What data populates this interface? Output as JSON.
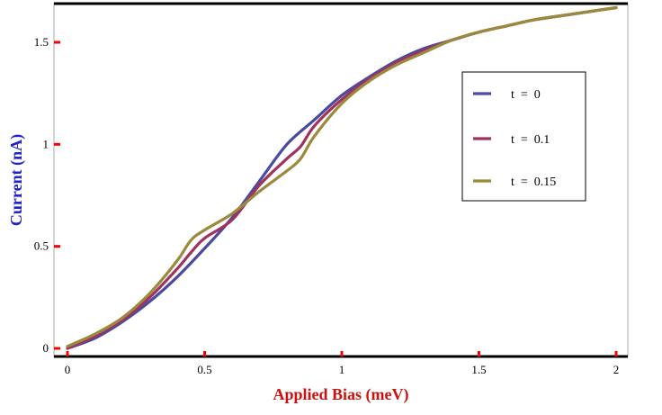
{
  "chart_data": {
    "type": "line",
    "xlabel": "Applied Bias  (meV)",
    "ylabel": "Current  (nA)",
    "xlim": [
      -0.05,
      2.05
    ],
    "ylim": [
      -0.05,
      1.7
    ],
    "x_ticks": [
      {
        "value": 0,
        "label": "0"
      },
      {
        "value": 0.5,
        "label": "0.5"
      },
      {
        "value": 1,
        "label": "1"
      },
      {
        "value": 1.5,
        "label": "1.5"
      },
      {
        "value": 2,
        "label": "2"
      }
    ],
    "y_ticks": [
      {
        "value": 0,
        "label": "0"
      },
      {
        "value": 0.5,
        "label": "0.5"
      },
      {
        "value": 1,
        "label": "1"
      },
      {
        "value": 1.5,
        "label": "1.5"
      }
    ],
    "legend_position": "top-right",
    "series": [
      {
        "name": "t  =  0",
        "color": "#4a4aa0",
        "x": [
          0,
          0.1,
          0.2,
          0.3,
          0.4,
          0.5,
          0.6,
          0.7,
          0.8,
          0.9,
          1.0,
          1.1,
          1.2,
          1.3,
          1.4,
          1.5,
          1.6,
          1.7,
          1.8,
          1.9,
          2.0
        ],
        "y": [
          0.0,
          0.05,
          0.13,
          0.23,
          0.35,
          0.49,
          0.64,
          0.82,
          1.0,
          1.12,
          1.24,
          1.33,
          1.41,
          1.47,
          1.51,
          1.55,
          1.58,
          1.61,
          1.63,
          1.65,
          1.67
        ]
      },
      {
        "name": "t  =  0.1",
        "color": "#a0325f",
        "x": [
          0,
          0.1,
          0.2,
          0.3,
          0.4,
          0.45,
          0.5,
          0.6,
          0.7,
          0.8,
          0.85,
          0.9,
          1.0,
          1.1,
          1.2,
          1.3,
          1.4,
          1.5,
          1.6,
          1.7,
          1.8,
          1.9,
          2.0
        ],
        "y": [
          0.0,
          0.06,
          0.14,
          0.25,
          0.39,
          0.47,
          0.54,
          0.63,
          0.8,
          0.93,
          0.99,
          1.09,
          1.22,
          1.32,
          1.4,
          1.46,
          1.51,
          1.55,
          1.58,
          1.61,
          1.63,
          1.65,
          1.67
        ]
      },
      {
        "name": "t  =  0.15",
        "color": "#9a8a3c",
        "x": [
          0,
          0.1,
          0.2,
          0.3,
          0.4,
          0.45,
          0.5,
          0.6,
          0.7,
          0.8,
          0.85,
          0.9,
          1.0,
          1.1,
          1.2,
          1.3,
          1.4,
          1.5,
          1.6,
          1.7,
          1.8,
          1.9,
          2.0
        ],
        "y": [
          0.01,
          0.07,
          0.15,
          0.27,
          0.43,
          0.53,
          0.58,
          0.66,
          0.77,
          0.87,
          0.93,
          1.04,
          1.2,
          1.31,
          1.39,
          1.45,
          1.51,
          1.55,
          1.58,
          1.61,
          1.63,
          1.65,
          1.67
        ]
      }
    ]
  },
  "colors": {
    "axis_title": "#2222cc",
    "x_axis_title": "#cc1111",
    "tick_mark": "#ff0000"
  }
}
